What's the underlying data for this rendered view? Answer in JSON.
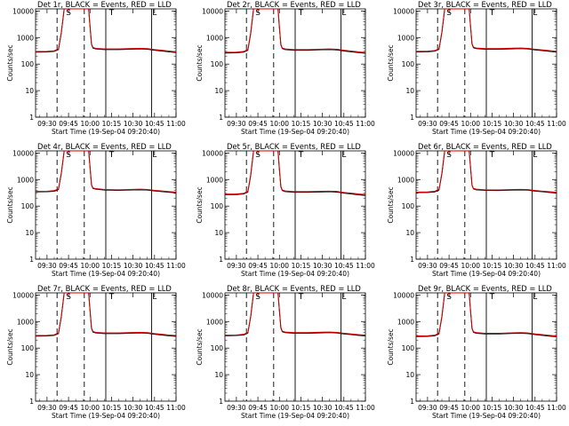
{
  "chart_data": {
    "type": "line",
    "layout": "3x3 grid of panels",
    "yscale": "log",
    "ylim": [
      1,
      12000
    ],
    "ylabel": "Counts/sec",
    "xlabel": "Start Time (19-Sep-04 09:20:40)",
    "xlim": [
      "09:22",
      "11:00"
    ],
    "x_ticks": [
      "09:30",
      "09:45",
      "10:00",
      "10:15",
      "10:30",
      "10:45",
      "11:00"
    ],
    "y_ticks": [
      "1",
      "10",
      "100",
      "1000",
      "10000"
    ],
    "grid": false,
    "colors": {
      "events": "#000000",
      "lld": "#cc0000"
    },
    "vertical_markers": [
      {
        "time": "09:37",
        "style": "dashed"
      },
      {
        "time": "09:56",
        "style": "dashed"
      },
      {
        "time": "10:11",
        "style": "solid"
      },
      {
        "time": "10:43",
        "style": "solid"
      }
    ],
    "markers": [
      {
        "time": "09:45",
        "label": "S"
      },
      {
        "time": "10:15",
        "label": "T"
      },
      {
        "time": "10:45",
        "label": "L"
      }
    ],
    "panels": [
      {
        "title": "Det 1r, BLACK = Events, RED = LLD",
        "series": [
          {
            "name": "Events",
            "x": [
              "09:22",
              "09:30",
              "09:35",
              "09:38",
              "09:40",
              "09:42",
              "09:59",
              "10:00",
              "10:01",
              "10:02",
              "10:04",
              "10:10",
              "10:20",
              "10:30",
              "10:35",
              "10:40",
              "10:45",
              "10:50",
              "10:55",
              "11:00"
            ],
            "y": [
              280,
              285,
              300,
              350,
              1500,
              12000,
              12000,
              2500,
              550,
              400,
              370,
              350,
              350,
              365,
              370,
              360,
              330,
              310,
              290,
              270
            ]
          },
          {
            "name": "LLD",
            "x": [
              "09:22",
              "09:30",
              "09:35",
              "09:38",
              "09:40",
              "09:42",
              "09:59",
              "10:00",
              "10:01",
              "10:02",
              "10:04",
              "10:10",
              "10:20",
              "10:30",
              "10:35",
              "10:40",
              "10:45",
              "10:50",
              "10:55",
              "11:00"
            ],
            "y": [
              295,
              300,
              315,
              370,
              1600,
              12000,
              12000,
              2600,
              580,
              420,
              390,
              370,
              370,
              385,
              390,
              380,
              350,
              330,
              310,
              290
            ]
          }
        ]
      },
      {
        "title": "Det 2r, BLACK = Events, RED = LLD",
        "series": [
          {
            "name": "Events",
            "x": [
              "09:22",
              "09:30",
              "09:35",
              "09:38",
              "09:40",
              "09:42",
              "09:59",
              "10:00",
              "10:01",
              "10:02",
              "10:04",
              "10:10",
              "10:20",
              "10:30",
              "10:35",
              "10:40",
              "10:45",
              "10:50",
              "10:55",
              "11:00"
            ],
            "y": [
              260,
              265,
              280,
              330,
              1400,
              12000,
              12000,
              2300,
              520,
              380,
              350,
              330,
              330,
              345,
              350,
              340,
              310,
              290,
              270,
              255
            ]
          },
          {
            "name": "LLD",
            "x": [
              "09:22",
              "09:30",
              "09:35",
              "09:38",
              "09:40",
              "09:42",
              "09:59",
              "10:00",
              "10:01",
              "10:02",
              "10:04",
              "10:10",
              "10:20",
              "10:30",
              "10:35",
              "10:40",
              "10:45",
              "10:50",
              "10:55",
              "11:00"
            ],
            "y": [
              275,
              280,
              295,
              350,
              1500,
              12000,
              12000,
              2400,
              550,
              400,
              370,
              350,
              350,
              365,
              370,
              360,
              330,
              310,
              290,
              270
            ]
          }
        ]
      },
      {
        "title": "Det 3r, BLACK = Events, RED = LLD",
        "series": [
          {
            "name": "Events",
            "x": [
              "09:22",
              "09:30",
              "09:35",
              "09:38",
              "09:40",
              "09:42",
              "09:59",
              "10:00",
              "10:01",
              "10:02",
              "10:04",
              "10:10",
              "10:20",
              "10:30",
              "10:35",
              "10:40",
              "10:45",
              "10:50",
              "10:55",
              "11:00"
            ],
            "y": [
              285,
              290,
              305,
              355,
              1500,
              12000,
              12000,
              2500,
              560,
              410,
              380,
              360,
              360,
              375,
              380,
              370,
              340,
              320,
              300,
              280
            ]
          },
          {
            "name": "LLD",
            "x": [
              "09:22",
              "09:30",
              "09:35",
              "09:38",
              "09:40",
              "09:42",
              "09:59",
              "10:00",
              "10:01",
              "10:02",
              "10:04",
              "10:10",
              "10:20",
              "10:30",
              "10:35",
              "10:40",
              "10:45",
              "10:50",
              "10:55",
              "11:00"
            ],
            "y": [
              300,
              305,
              320,
              375,
              1600,
              12000,
              12000,
              2600,
              590,
              430,
              400,
              380,
              380,
              395,
              400,
              390,
              360,
              340,
              320,
              300
            ]
          }
        ]
      },
      {
        "title": "Det 4r, BLACK = Events, RED = LLD",
        "series": [
          {
            "name": "Events",
            "x": [
              "09:22",
              "09:30",
              "09:35",
              "09:38",
              "09:40",
              "09:42",
              "09:59",
              "10:00",
              "10:01",
              "10:02",
              "10:04",
              "10:10",
              "10:20",
              "10:30",
              "10:35",
              "10:40",
              "10:45",
              "10:50",
              "10:55",
              "11:00"
            ],
            "y": [
              340,
              345,
              360,
              420,
              1700,
              12000,
              12000,
              2800,
              620,
              460,
              430,
              400,
              390,
              405,
              410,
              400,
              370,
              350,
              330,
              315
            ]
          },
          {
            "name": "LLD",
            "x": [
              "09:22",
              "09:30",
              "09:35",
              "09:38",
              "09:40",
              "09:42",
              "09:59",
              "10:00",
              "10:01",
              "10:02",
              "10:04",
              "10:10",
              "10:20",
              "10:30",
              "10:35",
              "10:40",
              "10:45",
              "10:50",
              "10:55",
              "11:00"
            ],
            "y": [
              355,
              360,
              380,
              440,
              1800,
              12000,
              12000,
              2900,
              650,
              480,
              450,
              420,
              410,
              425,
              430,
              420,
              390,
              370,
              350,
              335
            ]
          }
        ]
      },
      {
        "title": "Det 5r, BLACK = Events, RED = LLD",
        "series": [
          {
            "name": "Events",
            "x": [
              "09:22",
              "09:30",
              "09:35",
              "09:38",
              "09:40",
              "09:42",
              "09:59",
              "10:00",
              "10:01",
              "10:02",
              "10:04",
              "10:10",
              "10:20",
              "10:30",
              "10:35",
              "10:40",
              "10:45",
              "10:50",
              "10:55",
              "11:00"
            ],
            "y": [
              265,
              270,
              285,
              335,
              1400,
              12000,
              12000,
              2300,
              520,
              380,
              350,
              330,
              330,
              340,
              345,
              335,
              305,
              285,
              265,
              250
            ]
          },
          {
            "name": "LLD",
            "x": [
              "09:22",
              "09:30",
              "09:35",
              "09:38",
              "09:40",
              "09:42",
              "09:59",
              "10:00",
              "10:01",
              "10:02",
              "10:04",
              "10:10",
              "10:20",
              "10:30",
              "10:35",
              "10:40",
              "10:45",
              "10:50",
              "10:55",
              "11:00"
            ],
            "y": [
              280,
              285,
              300,
              355,
              1500,
              12000,
              12000,
              2400,
              550,
              400,
              370,
              350,
              350,
              360,
              365,
              355,
              325,
              305,
              285,
              270
            ]
          }
        ]
      },
      {
        "title": "Det 6r, BLACK = Events, RED = LLD",
        "series": [
          {
            "name": "Events",
            "x": [
              "09:22",
              "09:30",
              "09:35",
              "09:38",
              "09:40",
              "09:42",
              "09:59",
              "10:00",
              "10:01",
              "10:02",
              "10:04",
              "10:10",
              "10:20",
              "10:30",
              "10:35",
              "10:40",
              "10:45",
              "10:50",
              "10:55",
              "11:00"
            ],
            "y": [
              320,
              325,
              340,
              400,
              1600,
              12000,
              12000,
              2700,
              600,
              440,
              410,
              390,
              385,
              400,
              405,
              395,
              365,
              345,
              325,
              310
            ]
          },
          {
            "name": "LLD",
            "x": [
              "09:22",
              "09:30",
              "09:35",
              "09:38",
              "09:40",
              "09:42",
              "09:59",
              "10:00",
              "10:01",
              "10:02",
              "10:04",
              "10:10",
              "10:20",
              "10:30",
              "10:35",
              "10:40",
              "10:45",
              "10:50",
              "10:55",
              "11:00"
            ],
            "y": [
              335,
              340,
              360,
              420,
              1700,
              12000,
              12000,
              2800,
              630,
              460,
              430,
              410,
              405,
              420,
              425,
              415,
              385,
              365,
              345,
              330
            ]
          }
        ]
      },
      {
        "title": "Det 7r, BLACK = Events, RED = LLD",
        "series": [
          {
            "name": "Events",
            "x": [
              "09:22",
              "09:30",
              "09:35",
              "09:38",
              "09:40",
              "09:42",
              "09:59",
              "10:00",
              "10:01",
              "10:02",
              "10:04",
              "10:10",
              "10:20",
              "10:30",
              "10:35",
              "10:40",
              "10:45",
              "10:50",
              "10:55",
              "11:00"
            ],
            "y": [
              280,
              285,
              300,
              350,
              1500,
              12000,
              12000,
              2500,
              550,
              400,
              370,
              350,
              350,
              365,
              370,
              360,
              330,
              310,
              290,
              275
            ]
          },
          {
            "name": "LLD",
            "x": [
              "09:22",
              "09:30",
              "09:35",
              "09:38",
              "09:40",
              "09:42",
              "09:59",
              "10:00",
              "10:01",
              "10:02",
              "10:04",
              "10:10",
              "10:20",
              "10:30",
              "10:35",
              "10:40",
              "10:45",
              "10:50",
              "10:55",
              "11:00"
            ],
            "y": [
              295,
              300,
              315,
              370,
              1600,
              12000,
              12000,
              2600,
              580,
              420,
              390,
              370,
              370,
              385,
              390,
              380,
              350,
              330,
              310,
              295
            ]
          }
        ]
      },
      {
        "title": "Det 8r, BLACK = Events, RED = LLD",
        "series": [
          {
            "name": "Events",
            "x": [
              "09:22",
              "09:30",
              "09:35",
              "09:38",
              "09:40",
              "09:42",
              "09:59",
              "10:00",
              "10:01",
              "10:02",
              "10:04",
              "10:10",
              "10:20",
              "10:30",
              "10:35",
              "10:40",
              "10:45",
              "10:50",
              "10:55",
              "11:00"
            ],
            "y": [
              290,
              295,
              310,
              365,
              1500,
              12000,
              12000,
              2500,
              570,
              410,
              380,
              360,
              360,
              375,
              380,
              370,
              340,
              320,
              300,
              285
            ]
          },
          {
            "name": "LLD",
            "x": [
              "09:22",
              "09:30",
              "09:35",
              "09:38",
              "09:40",
              "09:42",
              "09:59",
              "10:00",
              "10:01",
              "10:02",
              "10:04",
              "10:10",
              "10:20",
              "10:30",
              "10:35",
              "10:40",
              "10:45",
              "10:50",
              "10:55",
              "11:00"
            ],
            "y": [
              305,
              310,
              330,
              385,
              1600,
              12000,
              12000,
              2600,
              600,
              430,
              400,
              380,
              380,
              395,
              400,
              390,
              360,
              340,
              320,
              305
            ]
          }
        ]
      },
      {
        "title": "Det 9r, BLACK = Events, RED = LLD",
        "series": [
          {
            "name": "Events",
            "x": [
              "09:22",
              "09:30",
              "09:35",
              "09:38",
              "09:40",
              "09:42",
              "09:59",
              "10:00",
              "10:01",
              "10:02",
              "10:04",
              "10:10",
              "10:20",
              "10:30",
              "10:35",
              "10:40",
              "10:45",
              "10:50",
              "10:55",
              "11:00"
            ],
            "y": [
              270,
              275,
              290,
              340,
              1450,
              12000,
              12000,
              2400,
              540,
              390,
              360,
              340,
              340,
              355,
              360,
              350,
              320,
              300,
              280,
              265
            ]
          },
          {
            "name": "LLD",
            "x": [
              "09:22",
              "09:30",
              "09:35",
              "09:38",
              "09:40",
              "09:42",
              "09:59",
              "10:00",
              "10:01",
              "10:02",
              "10:04",
              "10:10",
              "10:20",
              "10:30",
              "10:35",
              "10:40",
              "10:45",
              "10:50",
              "10:55",
              "11:00"
            ],
            "y": [
              285,
              290,
              305,
              360,
              1550,
              12000,
              12000,
              2500,
              570,
              410,
              380,
              360,
              360,
              375,
              380,
              370,
              340,
              320,
              300,
              285
            ]
          }
        ]
      }
    ]
  }
}
